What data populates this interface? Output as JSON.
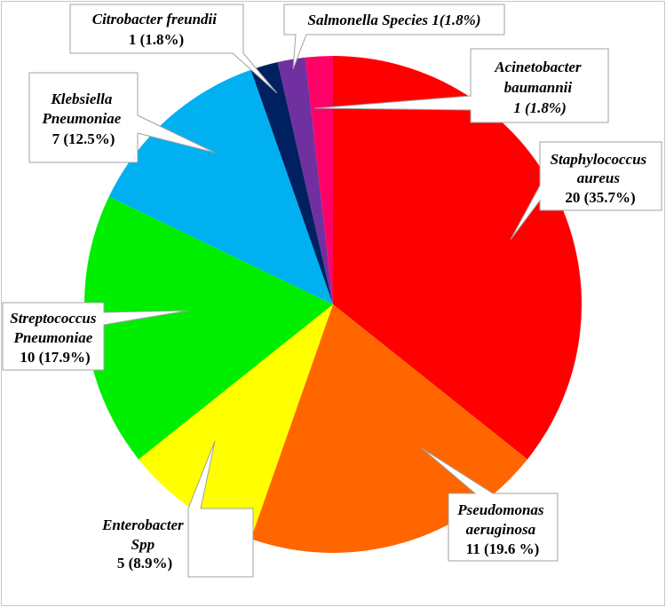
{
  "chart_data": {
    "type": "pie",
    "title": "",
    "slices": [
      {
        "name": "Staphylococcus aureus",
        "value": 20,
        "percent_label": "(35.7%)",
        "color": "#ff0000"
      },
      {
        "name": "Pseudomonas aeruginosa",
        "value": 11,
        "percent_label": "(19.6 %)",
        "color": "#ff6600"
      },
      {
        "name": "Enterobacter Spp",
        "value": 5,
        "percent_label": "(8.9%)",
        "color": "#ffff00"
      },
      {
        "name": "Streptococcus Pneumoniae",
        "value": 10,
        "percent_label": "(17.9%)",
        "color": "#00ee00"
      },
      {
        "name": "Klebsiella Pneumoniae",
        "value": 7,
        "percent_label": "(12.5%)",
        "color": "#00b0f0"
      },
      {
        "name": "Citrobacter freundii",
        "value": 1,
        "percent_label": "(1.8%)",
        "color": "#002060"
      },
      {
        "name": "Salmonella Species 1",
        "value": 1,
        "percent_label": "(1.8%)",
        "color": "#7030a0"
      },
      {
        "name": "Acinetobacter baumannii",
        "value": 1,
        "percent_label": "(1.8%)",
        "color": "#ff0066"
      }
    ]
  },
  "labels": {
    "staph": {
      "line1": "Staphylococcus",
      "line2": "aureus",
      "line3": "20 (35.7%)"
    },
    "pseudo": {
      "line1": "Pseudomonas",
      "line2": "aeruginosa",
      "line3": "11 (19.6 %)"
    },
    "entero": {
      "line1": "Enterobacter",
      "line2": "Spp",
      "line3": "5 (8.9%)"
    },
    "strep": {
      "line1": "Streptococcus",
      "line2": "Pneumoniae",
      "line3": "10 (17.9%)"
    },
    "kleb": {
      "line1": "Klebsiella",
      "line2": "Pneumoniae",
      "line3": "7 (12.5%)"
    },
    "citro": {
      "line1": "Citrobacter freundii",
      "line2": "1 (1.8%)"
    },
    "salmo": {
      "line1": "Salmonella Species 1(1.8%)"
    },
    "acine": {
      "line1": "Acinetobacter",
      "line2": "baumannii",
      "line3": "1 (1.8%)"
    }
  }
}
